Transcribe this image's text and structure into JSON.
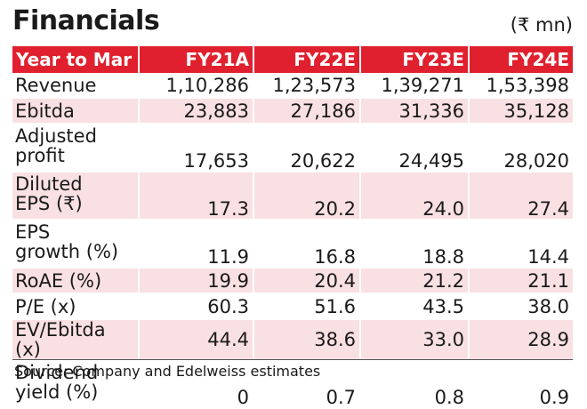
{
  "title": "Financials",
  "unit": "(₹ mn)",
  "header": [
    "Year to Mar",
    "FY21A",
    "FY22E",
    "FY23E",
    "FY24E"
  ],
  "rows": [
    {
      "label": [
        "Revenue"
      ],
      "values": [
        "1,10,286",
        "1,23,573",
        "1,39,271",
        "1,53,398"
      ]
    },
    {
      "label": [
        "Ebitda"
      ],
      "values": [
        "23,883",
        "27,186",
        "31,336",
        "35,128"
      ]
    },
    {
      "label": [
        "Adjusted",
        "profit"
      ],
      "values": [
        "17,653",
        "20,622",
        "24,495",
        "28,020"
      ]
    },
    {
      "label": [
        "Diluted",
        "EPS (₹)"
      ],
      "values": [
        "17.3",
        "20.2",
        "24.0",
        "27.4"
      ]
    },
    {
      "label": [
        "EPS",
        "growth (%)"
      ],
      "values": [
        "11.9",
        "16.8",
        "18.8",
        "14.4"
      ]
    },
    {
      "label": [
        "RoAE (%)"
      ],
      "values": [
        "19.9",
        "20.4",
        "21.2",
        "21.1"
      ]
    },
    {
      "label": [
        "P/E (x)"
      ],
      "values": [
        "60.3",
        "51.6",
        "43.5",
        "38.0"
      ]
    },
    {
      "label": [
        "EV/Ebitda (x)"
      ],
      "values": [
        "44.4",
        "38.6",
        "33.0",
        "28.9"
      ]
    },
    {
      "label": [
        "Dividend",
        "yield (%)"
      ],
      "values": [
        "0",
        "0.7",
        "0.8",
        "0.9"
      ]
    }
  ],
  "source": "Source: Company and Edelweiss estimates",
  "colors": {
    "header_bg": "#e0202e",
    "shade_bg": "#f9e0e3"
  }
}
